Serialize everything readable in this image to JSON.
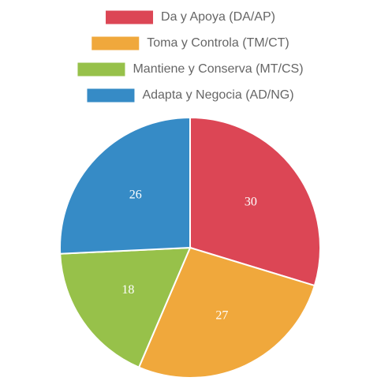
{
  "chart_data": {
    "type": "pie",
    "categories": [
      "Da y Apoya (DA/AP)",
      "Toma y Controla (TM/CT)",
      "Mantiene y Conserva (MT/CS)",
      "Adapta y Negocia (AD/NG)"
    ],
    "values": [
      30,
      27,
      18,
      26
    ],
    "colors": [
      "#dc4655",
      "#f0a83c",
      "#97c14a",
      "#368bc6"
    ],
    "legend": "top"
  }
}
